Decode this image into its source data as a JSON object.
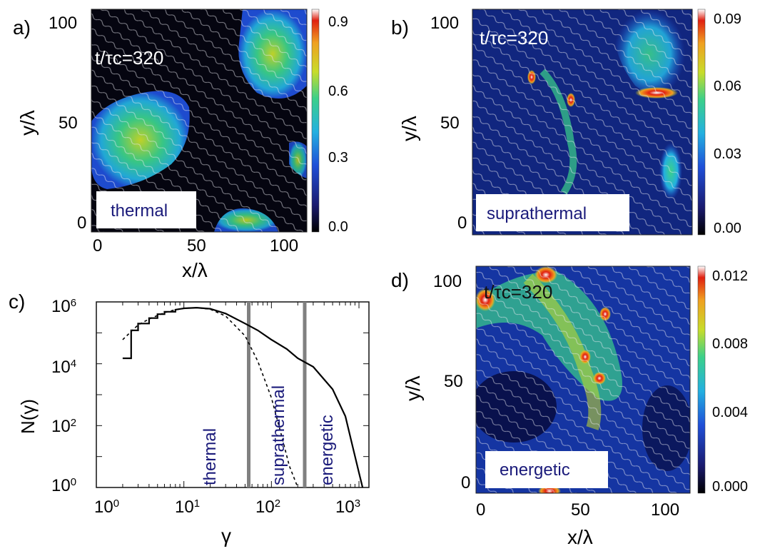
{
  "colors": {
    "map_stops": [
      "#000000",
      "#1a1a6e",
      "#1f4fd8",
      "#23b0e0",
      "#3bd08a",
      "#c8dc2a",
      "#f0a020",
      "#e02010",
      "#ffffff"
    ],
    "field_lines": "#e8e8f0",
    "label_text": "#1a1a7a",
    "panel_bg": "#050510",
    "curve": "#000000",
    "divider": "#808080"
  },
  "chart_data": [
    {
      "id": "a",
      "type": "heatmap",
      "panel_label": "a)",
      "time_label": "t/τc=320",
      "region_label": "thermal",
      "xlabel": "x/λ",
      "ylabel": "y/λ",
      "xlim": [
        0,
        105
      ],
      "ylim": [
        0,
        105
      ],
      "x_ticks": [
        "0",
        "50",
        "100"
      ],
      "y_ticks": [
        "0",
        "50",
        "100"
      ],
      "colorbar_range": [
        0.0,
        0.9
      ],
      "colorbar_ticks": [
        "0.0",
        "0.3",
        "0.6",
        "0.9"
      ]
    },
    {
      "id": "b",
      "type": "heatmap",
      "panel_label": "b)",
      "time_label": "t/τc=320",
      "region_label": "suprathermal",
      "ylabel": "y/λ",
      "xlim": [
        0,
        105
      ],
      "ylim": [
        0,
        105
      ],
      "y_ticks": [
        "0",
        "50",
        "100"
      ],
      "colorbar_range": [
        0.0,
        0.09
      ],
      "colorbar_ticks": [
        "0.00",
        "0.03",
        "0.06",
        "0.09"
      ]
    },
    {
      "id": "c",
      "type": "line",
      "panel_label": "c)",
      "xlabel": "γ",
      "ylabel": "N(γ)",
      "x_scale": "log",
      "y_scale": "log",
      "xlim": [
        1,
        1300
      ],
      "ylim": [
        1,
        1000000
      ],
      "x_ticks": [
        "10^0",
        "10^1",
        "10^2",
        "10^3"
      ],
      "y_ticks": [
        "10^0",
        "10^2",
        "10^4",
        "10^6"
      ],
      "series": [
        {
          "style": "solid-step",
          "x": [
            2,
            2.5,
            3,
            4,
            5,
            6,
            8,
            10,
            14,
            20,
            30,
            50,
            70,
            100,
            150,
            200,
            300,
            500,
            700,
            850,
            1000,
            1100
          ],
          "y": [
            15000,
            120000,
            200000,
            300000,
            400000,
            480000,
            560000,
            620000,
            650000,
            600000,
            420000,
            200000,
            120000,
            60000,
            30000,
            15000,
            8000,
            1500,
            200,
            20,
            3,
            1
          ]
        },
        {
          "style": "dashed",
          "x": [
            2,
            3,
            4,
            6,
            8,
            10,
            14,
            20,
            30,
            50,
            70,
            100,
            130,
            160,
            200
          ],
          "y": [
            60000,
            180000,
            280000,
            450000,
            560000,
            620000,
            650000,
            580000,
            350000,
            80000,
            12000,
            800,
            50,
            5,
            1
          ]
        }
      ],
      "dividers": [
        55,
        240
      ],
      "region_labels": [
        "thermal",
        "suprathermal",
        "energetic"
      ]
    },
    {
      "id": "d",
      "type": "heatmap",
      "panel_label": "d)",
      "time_label": "t/τc=320",
      "region_label": "energetic",
      "xlabel": "x/λ",
      "ylabel": "y/λ",
      "xlim": [
        0,
        105
      ],
      "ylim": [
        0,
        105
      ],
      "x_ticks": [
        "0",
        "50",
        "100"
      ],
      "y_ticks": [
        "0",
        "50",
        "100"
      ],
      "colorbar_range": [
        0.0,
        0.012
      ],
      "colorbar_ticks": [
        "0.000",
        "0.004",
        "0.008",
        "0.012"
      ]
    }
  ]
}
